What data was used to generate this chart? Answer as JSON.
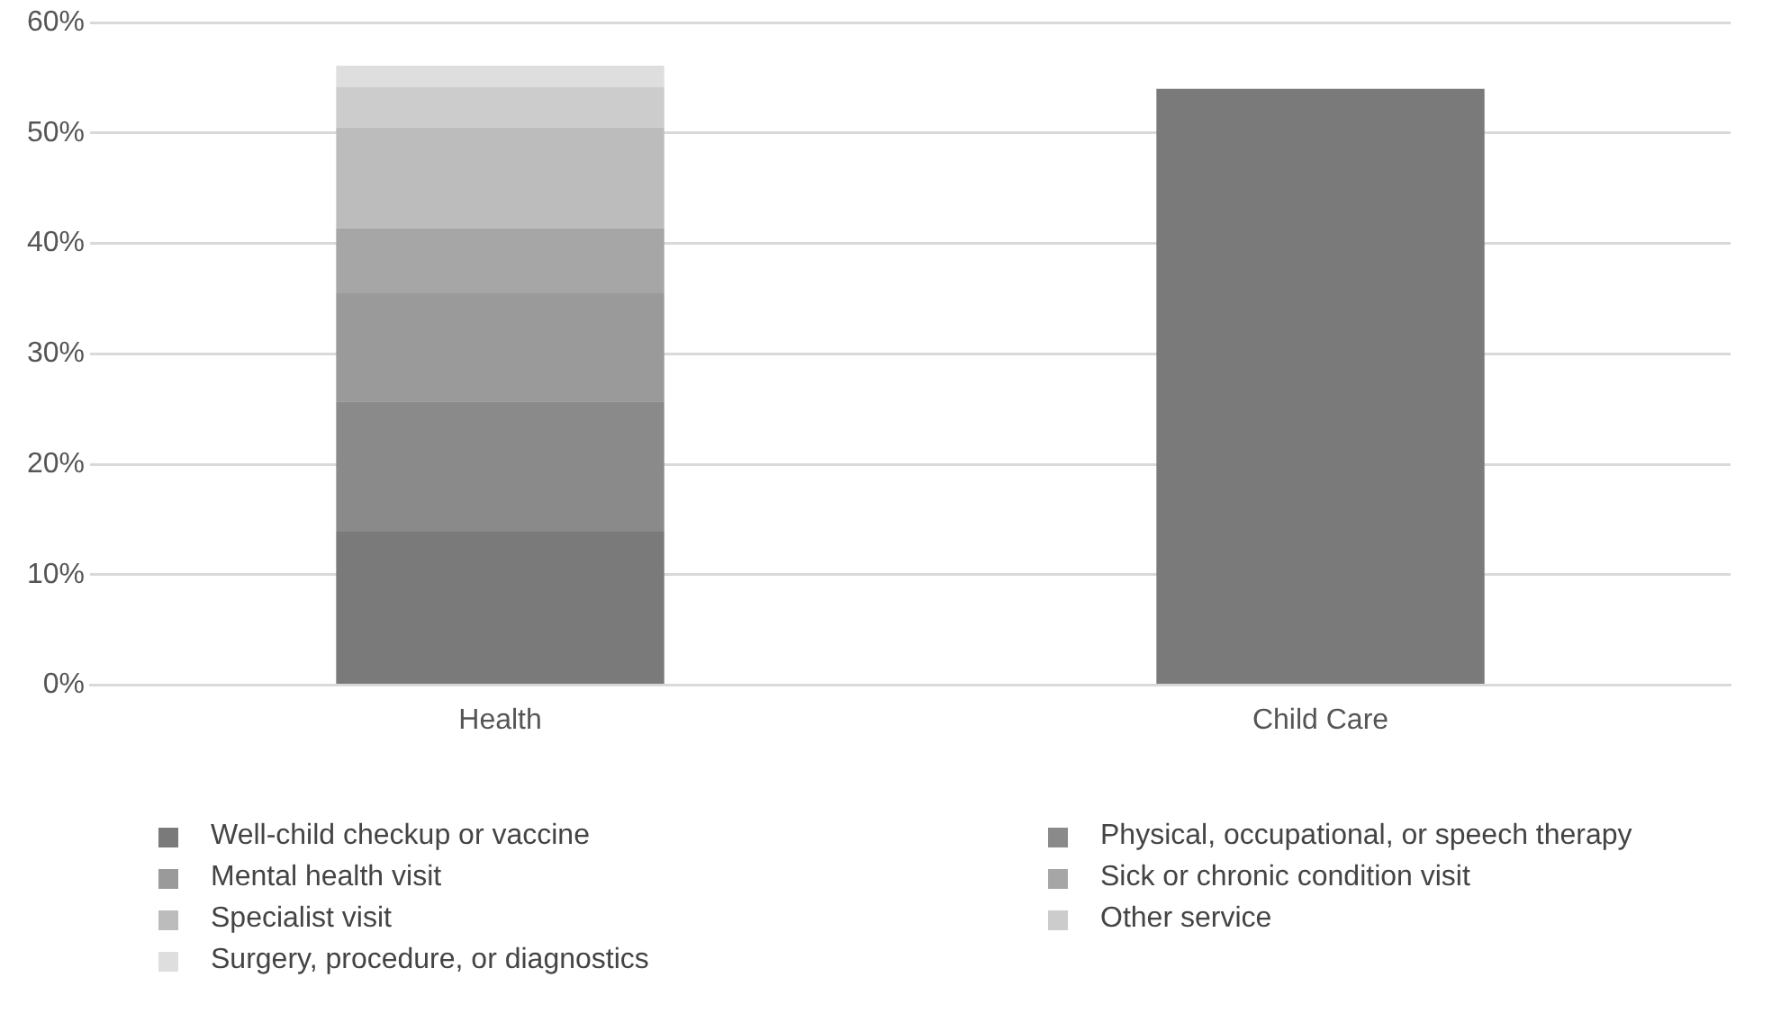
{
  "chart_data": {
    "type": "bar",
    "stacked": true,
    "categories": [
      "Health",
      "Child Care"
    ],
    "series": [
      {
        "name": "Well-child checkup or vaccine",
        "color": "#7a7a7a",
        "values": [
          13.9,
          54
        ]
      },
      {
        "name": "Physical, occupational, or speech therapy",
        "color": "#8a8a8a",
        "values": [
          11.8,
          null
        ]
      },
      {
        "name": "Mental health visit",
        "color": "#9a9a9a",
        "values": [
          9.8,
          null
        ]
      },
      {
        "name": "Sick or chronic condition visit",
        "color": "#a6a6a6",
        "values": [
          5.9,
          null
        ]
      },
      {
        "name": "Specialist visit",
        "color": "#bcbcbc",
        "values": [
          9.1,
          null
        ]
      },
      {
        "name": "Other service",
        "color": "#cccccc",
        "values": [
          3.7,
          null
        ]
      },
      {
        "name": "Surgery, procedure, or diagnostics",
        "color": "#dedede",
        "values": [
          1.9,
          null
        ]
      }
    ],
    "ylim": [
      0,
      60
    ],
    "yticks": [
      {
        "value": 0,
        "label": "0%"
      },
      {
        "value": 10,
        "label": "10%"
      },
      {
        "value": 20,
        "label": "20%"
      },
      {
        "value": 30,
        "label": "30%"
      },
      {
        "value": 40,
        "label": "40%"
      },
      {
        "value": 50,
        "label": "50%"
      },
      {
        "value": 60,
        "label": "60%"
      }
    ],
    "grid": "y",
    "legend": "bottom"
  }
}
